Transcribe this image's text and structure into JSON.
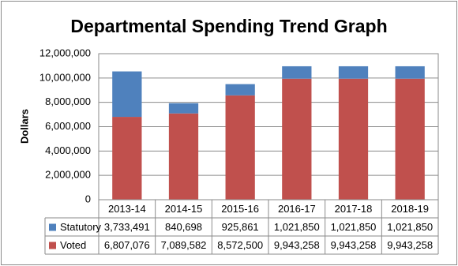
{
  "chart_data": {
    "type": "bar",
    "stacked": true,
    "title": "Departmental Spending Trend Graph",
    "y_label": "Dollars",
    "categories": [
      "2013-14",
      "2014-15",
      "2015-16",
      "2016-17",
      "2017-18",
      "2018-19"
    ],
    "series": [
      {
        "name": "Statutory",
        "color": "#4f81bd",
        "values": [
          3733491,
          840698,
          925861,
          1021850,
          1021850,
          1021850
        ],
        "value_labels": [
          "3,733,491",
          "840,698",
          "925,861",
          "1,021,850",
          "1,021,850",
          "1,021,850"
        ]
      },
      {
        "name": "Voted",
        "color": "#c0504d",
        "values": [
          6807076,
          7089582,
          8572500,
          9943258,
          9943258,
          9943258
        ],
        "value_labels": [
          "6,807,076",
          "7,089,582",
          "8,572,500",
          "9,943,258",
          "9,943,258",
          "9,943,258"
        ]
      }
    ],
    "ylim": [
      0,
      12000000
    ],
    "yticks": [
      0,
      {
        "value": 2000000,
        "label": "2,000,000"
      },
      {
        "value": 4000000,
        "label": "4,000,000"
      },
      {
        "value": 6000000,
        "label": "6,000,000"
      },
      {
        "value": 8000000,
        "label": "8,000,000"
      },
      {
        "value": 10000000,
        "label": "10,000,000"
      },
      {
        "value": 12000000,
        "label": "12,000,000"
      }
    ],
    "grid": true
  }
}
